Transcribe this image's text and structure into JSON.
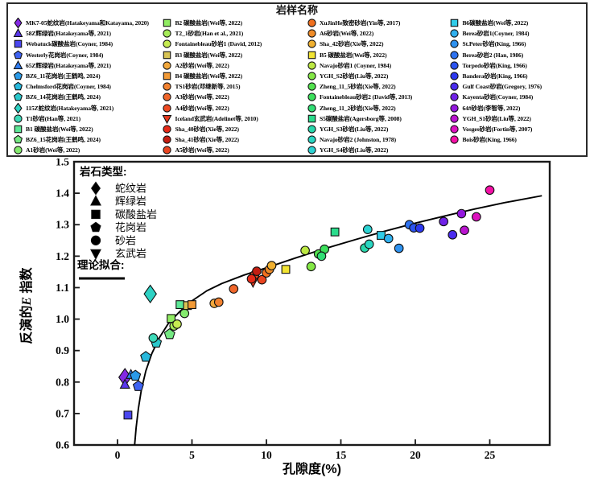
{
  "sample_legend": {
    "title": "岩样名称"
  },
  "rock_type_legend": {
    "title": "岩石类型:",
    "items": [
      {
        "shape": "diamond",
        "label": "蛇纹岩"
      },
      {
        "shape": "triangle",
        "label": "辉绿岩"
      },
      {
        "shape": "square",
        "label": "碳酸盐岩"
      },
      {
        "shape": "pentagon",
        "label": "花岗岩"
      },
      {
        "shape": "circle",
        "label": "砂岩"
      },
      {
        "shape": "triangle-down",
        "label": "玄武岩"
      }
    ]
  },
  "fit_label": "理论拟合:",
  "axes": {
    "xlabel": "孔隙度(%)",
    "ylabel_prefix": "反演的",
    "ylabel_var": "E",
    "ylabel_suffix": " 指数"
  },
  "chart_data": {
    "type": "scatter",
    "title": "岩样名称",
    "xlabel": "孔隙度(%)",
    "ylabel": "反演的E指数",
    "xlim": [
      -2.9,
      29.0
    ],
    "ylim": [
      0.6,
      1.5
    ],
    "xticks": [
      "0",
      "5",
      "10",
      "15",
      "20",
      "25"
    ],
    "yticks": [
      "0.6",
      "0.7",
      "0.8",
      "0.9",
      "1.0",
      "1.1",
      "1.2",
      "1.3",
      "1.4",
      "1.5"
    ],
    "grid": false,
    "fit_curve": [
      [
        1.15,
        0.6
      ],
      [
        1.25,
        0.655
      ],
      [
        1.4,
        0.715
      ],
      [
        1.6,
        0.775
      ],
      [
        1.9,
        0.835
      ],
      [
        2.3,
        0.89
      ],
      [
        2.8,
        0.94
      ],
      [
        3.4,
        0.985
      ],
      [
        4.2,
        1.025
      ],
      [
        5.0,
        1.058
      ],
      [
        6.0,
        1.09
      ],
      [
        7.0,
        1.113
      ],
      [
        8.5,
        1.14
      ],
      [
        10,
        1.163
      ],
      [
        12,
        1.195
      ],
      [
        14,
        1.225
      ],
      [
        16,
        1.253
      ],
      [
        18,
        1.28
      ],
      [
        20,
        1.305
      ],
      [
        22,
        1.328
      ],
      [
        24,
        1.35
      ],
      [
        26,
        1.37
      ],
      [
        28.5,
        1.392
      ]
    ],
    "samples": [
      {
        "col": 0,
        "label": "MK7-05蛇纹岩(Hatakeyama和Katayama, 2020)",
        "shape": "diamond",
        "color": "#8428E4",
        "x": 0.5,
        "y": 0.815,
        "big": true
      },
      {
        "col": 0,
        "label": "58Z辉绿岩(Hatakeyama等, 2021)",
        "shape": "triangle",
        "color": "#5A38EC",
        "x": 0.5,
        "y": 0.792
      },
      {
        "col": 0,
        "label": "Webatuck碳酸盐岩(Coyner, 1984)",
        "shape": "square",
        "color": "#4A46F0",
        "x": 0.7,
        "y": 0.695
      },
      {
        "col": 0,
        "label": "Westerly花岗岩(Coyner, 1984)",
        "shape": "pentagon",
        "color": "#3E62F2",
        "x": 1.4,
        "y": 0.787
      },
      {
        "col": 0,
        "label": "65Z辉绿岩(Hatakeyama等, 2021)",
        "shape": "triangle",
        "color": "#2E7CF2",
        "x": 0.9,
        "y": 0.823
      },
      {
        "col": 0,
        "label": "BZ6_11花岗岩(王鹤鸣, 2024)",
        "shape": "pentagon",
        "color": "#2A9AE8",
        "x": 1.2,
        "y": 0.82
      },
      {
        "col": 0,
        "label": "Chelmsford花岗岩(Coyner, 1984)",
        "shape": "pentagon",
        "color": "#28B8DC",
        "x": 1.9,
        "y": 0.88
      },
      {
        "col": 0,
        "label": "BZ6_14花岗岩(王鹤鸣, 2024)",
        "shape": "pentagon",
        "color": "#2AC8CC",
        "x": 2.6,
        "y": 0.925
      },
      {
        "col": 0,
        "label": "115Z蛇纹岩(Hatakeyama等, 2021)",
        "shape": "diamond",
        "color": "#2ED2C4",
        "x": 2.2,
        "y": 1.08,
        "big": true
      },
      {
        "col": 0,
        "label": "T1砂岩(Han等, 2021)",
        "shape": "circle",
        "color": "#3CDAB8",
        "x": 2.4,
        "y": 0.94
      },
      {
        "col": 0,
        "label": "B1 碳酸盐岩(Wei等, 2022)",
        "shape": "square",
        "color": "#5CE896",
        "x": 4.2,
        "y": 1.046
      },
      {
        "col": 0,
        "label": "BZ6_15花岗岩(王鹤鸣, 2024)",
        "shape": "pentagon",
        "color": "#74E882",
        "x": 3.5,
        "y": 0.952
      },
      {
        "col": 0,
        "label": "A1砂岩(Wei等, 2022)",
        "shape": "circle",
        "color": "#84EA6E",
        "x": 4.5,
        "y": 1.018
      },
      {
        "col": 1,
        "label": "B2 碳酸盐岩(Wei等, 2022)",
        "shape": "square",
        "color": "#90EC62",
        "x": 3.6,
        "y": 1.002
      },
      {
        "col": 1,
        "label": "T2_1砂岩(Han et al., 2021)",
        "shape": "circle",
        "color": "#A6EC58",
        "x": 3.8,
        "y": 0.978
      },
      {
        "col": 1,
        "label": "Fontainebleau砂岩1 (David, 2012)",
        "shape": "circle",
        "color": "#C6EC50",
        "x": 4.0,
        "y": 0.984
      },
      {
        "col": 1,
        "label": "B3 碳酸盐岩(Wei等, 2022)",
        "shape": "square",
        "color": "#D8C455",
        "x": 4.7,
        "y": 1.043
      },
      {
        "col": 1,
        "label": "A2砂岩(Wei等, 2022)",
        "shape": "circle",
        "color": "#F2A83C",
        "x": 6.5,
        "y": 1.05
      },
      {
        "col": 1,
        "label": "B4 碳酸盐岩(Wei等, 2022)",
        "shape": "square",
        "color": "#F29A36",
        "x": 5.0,
        "y": 1.046
      },
      {
        "col": 1,
        "label": "TS1砂岩(邓继新等, 2015)",
        "shape": "circle",
        "color": "#F28230",
        "x": 6.8,
        "y": 1.054
      },
      {
        "col": 1,
        "label": "A3砂岩(Wei等, 2022)",
        "shape": "circle",
        "color": "#F0662A",
        "x": 7.8,
        "y": 1.096
      },
      {
        "col": 1,
        "label": "A4砂岩(Wei等, 2022)",
        "shape": "circle",
        "color": "#EE4A22",
        "x": 9.2,
        "y": 1.14
      },
      {
        "col": 1,
        "label": "Iceland玄武岩(Adelinet等, 2010)",
        "shape": "triangle-down",
        "color": "#E83A1E",
        "x": 9.1,
        "y": 1.118
      },
      {
        "col": 1,
        "label": "Sha_40砂岩(Xie等, 2022)",
        "shape": "circle",
        "color": "#E62A18",
        "x": 9.0,
        "y": 1.128
      },
      {
        "col": 1,
        "label": "Sha_41砂岩(Xie等, 2022)",
        "shape": "circle",
        "color": "#C41E12",
        "x": 9.35,
        "y": 1.152
      },
      {
        "col": 1,
        "label": "A5砂岩(Wei等, 2022)",
        "shape": "circle",
        "color": "#E84420",
        "x": 9.7,
        "y": 1.125
      },
      {
        "col": 2,
        "label": "XuJinHe致密砂岩(Yin等, 2017)",
        "shape": "circle",
        "color": "#F0701F",
        "x": 10.0,
        "y": 1.147
      },
      {
        "col": 2,
        "label": "A6砂岩(Wei等, 2022)",
        "shape": "circle",
        "color": "#F08C28",
        "x": 10.2,
        "y": 1.158
      },
      {
        "col": 2,
        "label": "Sha_42砂岩(Xie等, 2022)",
        "shape": "circle",
        "color": "#F0B030",
        "x": 10.35,
        "y": 1.17
      },
      {
        "col": 2,
        "label": "B5 碳酸盐岩(Wei等, 2022)",
        "shape": "square",
        "color": "#F2E432",
        "x": 11.3,
        "y": 1.158
      },
      {
        "col": 2,
        "label": "Navajo砂岩1 (Coyner, 1984)",
        "shape": "circle",
        "color": "#BCE842",
        "x": 12.6,
        "y": 1.218
      },
      {
        "col": 2,
        "label": "YGH_S2砂岩(Liu等, 2022)",
        "shape": "circle",
        "color": "#84E846",
        "x": 13.0,
        "y": 1.167
      },
      {
        "col": 2,
        "label": "Zheng_11_5砂岩(Xie等, 2022)",
        "shape": "circle",
        "color": "#52E24E",
        "x": 13.5,
        "y": 1.207
      },
      {
        "col": 2,
        "label": "Fontainebleau砂岩2 (David等, 2013)",
        "shape": "circle",
        "color": "#3CE05C",
        "x": 13.9,
        "y": 1.222
      },
      {
        "col": 2,
        "label": "Zheng_11_2砂岩(Xie等, 2022)",
        "shape": "circle",
        "color": "#30DE74",
        "x": 13.7,
        "y": 1.2
      },
      {
        "col": 2,
        "label": "S5碳酸盐岩(Agersborg等, 2008)",
        "shape": "square",
        "color": "#2ADC8C",
        "x": 14.6,
        "y": 1.277
      },
      {
        "col": 2,
        "label": "YGH_S3砂岩(Liu等, 2022)",
        "shape": "circle",
        "color": "#28D8AC",
        "x": 16.6,
        "y": 1.226
      },
      {
        "col": 2,
        "label": "Navajo砂岩2 (Johnston, 1978)",
        "shape": "circle",
        "color": "#2AD6C2",
        "x": 16.9,
        "y": 1.238
      },
      {
        "col": 2,
        "label": "YGH_S4砂岩(Liu等, 2022)",
        "shape": "circle",
        "color": "#2CD2D2",
        "x": 16.8,
        "y": 1.285
      },
      {
        "col": 3,
        "label": "B6碳酸盐岩(Wei等, 2022)",
        "shape": "square",
        "color": "#30CCE8",
        "x": 17.7,
        "y": 1.266
      },
      {
        "col": 3,
        "label": "Berea砂岩1(Coyner, 1984)",
        "shape": "circle",
        "color": "#30B0EE",
        "x": 18.2,
        "y": 1.256
      },
      {
        "col": 3,
        "label": "St.Peter砂岩(King, 1966)",
        "shape": "circle",
        "color": "#2E92F0",
        "x": 18.9,
        "y": 1.225
      },
      {
        "col": 3,
        "label": "Berea砂岩2 (Han, 1986)",
        "shape": "circle",
        "color": "#2E72F0",
        "x": 19.6,
        "y": 1.3
      },
      {
        "col": 3,
        "label": "Torpedo砂岩(King, 1966)",
        "shape": "circle",
        "color": "#2C54F0",
        "x": 19.9,
        "y": 1.29
      },
      {
        "col": 3,
        "label": "Bandera砂岩(King, 1966)",
        "shape": "circle",
        "color": "#2C38F0",
        "x": 20.3,
        "y": 1.289
      },
      {
        "col": 3,
        "label": "Gulf Coast砂岩(Gregory, 1976)",
        "shape": "circle",
        "color": "#4A2CEE",
        "x": 22.5,
        "y": 1.268
      },
      {
        "col": 3,
        "label": "Kayenta砂岩(Coyner, 1984)",
        "shape": "circle",
        "color": "#7022E8",
        "x": 21.9,
        "y": 1.31
      },
      {
        "col": 3,
        "label": "64#砂岩(李智等, 2022)",
        "shape": "circle",
        "color": "#9318DE",
        "x": 23.1,
        "y": 1.335
      },
      {
        "col": 3,
        "label": "YGH_S1砂岩(Liu等, 2022)",
        "shape": "circle",
        "color": "#BA14D0",
        "x": 23.3,
        "y": 1.282
      },
      {
        "col": 3,
        "label": "Vosges砂岩(Fortin等, 2007)",
        "shape": "circle",
        "color": "#DC12BE",
        "x": 24.1,
        "y": 1.325
      },
      {
        "col": 3,
        "label": "Bois砂岩(King, 1966)",
        "shape": "circle",
        "color": "#F410A6",
        "x": 25.0,
        "y": 1.41
      }
    ]
  }
}
